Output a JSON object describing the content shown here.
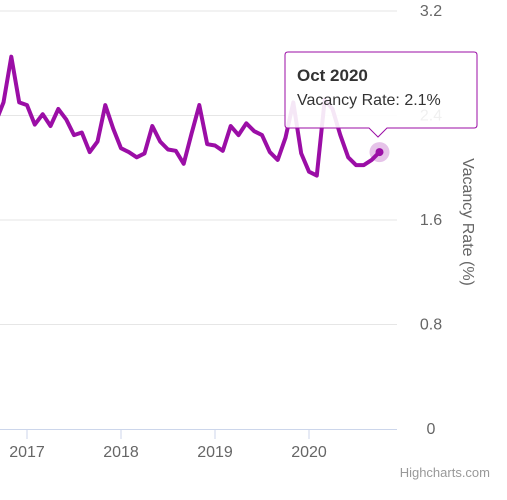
{
  "chart_data": {
    "type": "line",
    "ylabel": "Vacancy Rate (%)",
    "ylim": [
      0,
      3.2
    ],
    "yticks": [
      "0",
      "0.8",
      "1.6",
      "2.4",
      "3.2"
    ],
    "xticks": [
      "2017",
      "2018",
      "2019",
      "2020"
    ],
    "grid": true,
    "series": [
      {
        "color": "#9b0ea6",
        "x": [
          "2016-08",
          "2016-09",
          "2016-10",
          "2016-11",
          "2016-12",
          "2017-01",
          "2017-02",
          "2017-03",
          "2017-04",
          "2017-05",
          "2017-06",
          "2017-07",
          "2017-08",
          "2017-09",
          "2017-10",
          "2017-11",
          "2017-12",
          "2018-01",
          "2018-02",
          "2018-03",
          "2018-04",
          "2018-05",
          "2018-06",
          "2018-07",
          "2018-08",
          "2018-09",
          "2018-10",
          "2018-11",
          "2018-12",
          "2019-01",
          "2019-02",
          "2019-03",
          "2019-04",
          "2019-05",
          "2019-06",
          "2019-07",
          "2019-08",
          "2019-09",
          "2019-10",
          "2019-11",
          "2019-12",
          "2020-01",
          "2020-02",
          "2020-03",
          "2020-04",
          "2020-05",
          "2020-06",
          "2020-07",
          "2020-08",
          "2020-09",
          "2020-10"
        ],
        "y": [
          2.4,
          2.35,
          2.5,
          2.85,
          2.5,
          2.48,
          2.33,
          2.41,
          2.32,
          2.45,
          2.37,
          2.25,
          2.27,
          2.12,
          2.2,
          2.48,
          2.3,
          2.15,
          2.12,
          2.08,
          2.11,
          2.32,
          2.2,
          2.14,
          2.13,
          2.03,
          2.26,
          2.48,
          2.18,
          2.17,
          2.13,
          2.32,
          2.25,
          2.34,
          2.28,
          2.25,
          2.12,
          2.06,
          2.23,
          2.5,
          2.11,
          1.97,
          1.94,
          2.52,
          2.45,
          2.25,
          2.08,
          2.02,
          2.02,
          2.06,
          2.12
        ]
      }
    ]
  },
  "tooltip": {
    "title": "Oct 2020",
    "label": "Vacancy Rate",
    "value": "2.1%"
  },
  "credits": "Highcharts.com"
}
